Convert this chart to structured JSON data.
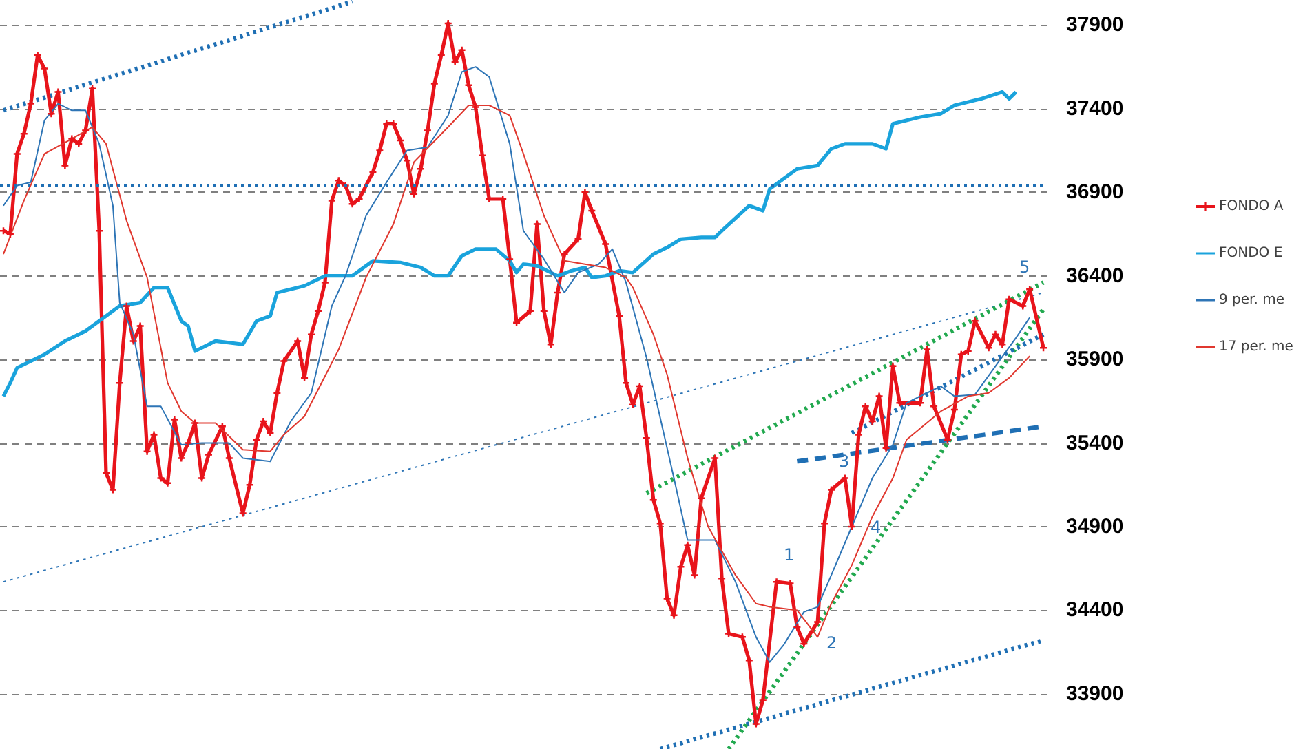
{
  "chart_data": {
    "type": "line",
    "categories": [
      null,
      null,
      null,
      null,
      null,
      null,
      null,
      null,
      null,
      null,
      null,
      null,
      null,
      null,
      null,
      null,
      null,
      null,
      null,
      null,
      null,
      null,
      null,
      null,
      null,
      null,
      null,
      null,
      null,
      null,
      null,
      null,
      null,
      null,
      null,
      null,
      null,
      null,
      null,
      null,
      null,
      null,
      null,
      null,
      null,
      null,
      null,
      null,
      null,
      null,
      null,
      null,
      null,
      null,
      null,
      null,
      null,
      null,
      null,
      null,
      null,
      null,
      null,
      null,
      null,
      null,
      null,
      null,
      null,
      null,
      null,
      null,
      null,
      null,
      null,
      null,
      null,
      null,
      null,
      null,
      null,
      null,
      null,
      null,
      null,
      null,
      null,
      null,
      null,
      null,
      null,
      null,
      null,
      null,
      null,
      null,
      null,
      null,
      null,
      null,
      null,
      null,
      null,
      null,
      null,
      null,
      null,
      null,
      null,
      null,
      null,
      null,
      null,
      null,
      null,
      null,
      null,
      null,
      null,
      null,
      null,
      null,
      null,
      null,
      null,
      null,
      null,
      null,
      null,
      null,
      null,
      null,
      null,
      null,
      null,
      null,
      null,
      null,
      null,
      null,
      null,
      null,
      null,
      null,
      null,
      null,
      null,
      null,
      null,
      null,
      null,
      null,
      null
    ],
    "ylim": [
      33570,
      38050
    ],
    "yticks": [
      33900,
      34400,
      34900,
      35400,
      35900,
      36400,
      36900,
      37400,
      37900
    ],
    "tick_labels": "y",
    "grid": "y",
    "legend": "right",
    "series": [
      {
        "name": "FONDO A",
        "color": "#e8141b",
        "marker": "cross",
        "values": [
          36670,
          36650,
          37130,
          37250,
          37430,
          37720,
          37640,
          37370,
          37500,
          37060,
          37220,
          37190,
          37270,
          37520,
          36670,
          35220,
          35120,
          35760,
          36220,
          36010,
          36100,
          35350,
          35450,
          35190,
          35160,
          35540,
          35310,
          35400,
          35520,
          35190,
          35330,
          null,
          35500,
          35310,
          null,
          34980,
          35150,
          35420,
          35530,
          35460,
          35700,
          35890,
          null,
          36010,
          35790,
          36050,
          36190,
          36360,
          36850,
          36970,
          36940,
          36830,
          36860,
          null,
          37020,
          37150,
          37310,
          37310,
          37210,
          37090,
          36890,
          37040,
          37270,
          37550,
          37720,
          37910,
          37680,
          37750,
          37540,
          37410,
          37120,
          36860,
          null,
          36860,
          36500,
          36120,
          null,
          36190,
          36710,
          36190,
          35990,
          36300,
          36530,
          null,
          36620,
          36900,
          36790,
          null,
          36590,
          null,
          36160,
          35760,
          35630,
          35740,
          35430,
          35060,
          34920,
          34470,
          34370,
          34660,
          34790,
          34610,
          35070,
          null,
          35310,
          34590,
          34260,
          null,
          34240,
          34100,
          33720,
          33860,
          null,
          34570,
          null,
          34560,
          34300,
          34200,
          null,
          34330,
          34920,
          35120,
          null,
          35190,
          34900,
          35450,
          35620,
          35530,
          35680,
          35370,
          35860,
          35640,
          null,
          null,
          35640,
          35960,
          35620,
          null,
          35420,
          35600,
          35930,
          35950,
          36130,
          null,
          35970,
          36050,
          35990,
          36260,
          null,
          36220,
          36320,
          null,
          35970
        ]
      },
      {
        "name": "FONDO E",
        "color": "#1aa3dc",
        "values": [
          35680,
          35760,
          35850,
          null,
          null,
          null,
          35930,
          null,
          null,
          36010,
          null,
          null,
          36070,
          null,
          null,
          null,
          null,
          36220,
          null,
          null,
          36240,
          null,
          36330,
          null,
          36330,
          null,
          36130,
          36100,
          35950,
          null,
          null,
          36010,
          null,
          null,
          null,
          35990,
          null,
          36130,
          null,
          36160,
          36300,
          null,
          null,
          null,
          36340,
          null,
          null,
          36400,
          null,
          null,
          null,
          36400,
          null,
          null,
          36490,
          null,
          null,
          null,
          36480,
          null,
          null,
          36450,
          null,
          36400,
          null,
          36400,
          null,
          36520,
          null,
          36560,
          null,
          null,
          36560,
          null,
          36490,
          36420,
          36470,
          null,
          36460,
          null,
          null,
          36400,
          null,
          36430,
          null,
          36450,
          36390,
          null,
          36400,
          null,
          36430,
          null,
          36420,
          null,
          null,
          36530,
          null,
          36570,
          null,
          36620,
          null,
          null,
          36630,
          null,
          36630,
          36670,
          null,
          null,
          null,
          36820,
          null,
          36790,
          36920,
          null,
          null,
          null,
          37040,
          null,
          null,
          37060,
          null,
          37160,
          null,
          37190,
          null,
          null,
          null,
          37190,
          null,
          37160,
          37310,
          null,
          null,
          null,
          37350,
          null,
          null,
          37370,
          null,
          37420,
          null,
          null,
          null,
          37460,
          null,
          null,
          37500,
          37460,
          37500,
          null,
          null,
          null,
          null
        ]
      },
      {
        "name": "9 per. me",
        "color": "#2e75b6",
        "values": [
          36820,
          null,
          36940,
          null,
          36960,
          null,
          37330,
          null,
          37430,
          null,
          37390,
          null,
          37390,
          null,
          37190,
          null,
          36820,
          36240,
          null,
          36050,
          null,
          35620,
          null,
          35620,
          null,
          null,
          35390,
          null,
          null,
          35400,
          null,
          null,
          null,
          35400,
          null,
          35310,
          null,
          null,
          null,
          35290,
          null,
          null,
          35530,
          null,
          null,
          35700,
          null,
          null,
          36220,
          null,
          36400,
          null,
          null,
          36760,
          null,
          null,
          36960,
          null,
          null,
          37150,
          null,
          null,
          37170,
          null,
          null,
          37360,
          null,
          37620,
          null,
          37650,
          null,
          37590,
          null,
          null,
          37190,
          null,
          36670,
          null,
          null,
          36500,
          null,
          null,
          36300,
          null,
          36420,
          null,
          null,
          36470,
          null,
          36560,
          null,
          36360,
          null,
          null,
          35910,
          null,
          null,
          null,
          35190,
          null,
          34820,
          null,
          null,
          null,
          34820,
          null,
          null,
          34570,
          null,
          null,
          34240,
          null,
          34090,
          null,
          34190,
          null,
          null,
          34390,
          null,
          34420,
          null,
          34610,
          null,
          null,
          34900,
          null,
          null,
          35190,
          null,
          null,
          35390,
          null,
          35640,
          null,
          null,
          null,
          null,
          35740,
          null,
          35680,
          null,
          null,
          35690,
          null,
          null,
          35860,
          null,
          null,
          36030,
          null,
          36150,
          null,
          null
        ]
      },
      {
        "name": "17 per. me",
        "color": "#e0382f",
        "values": [
          36530,
          null,
          null,
          36850,
          null,
          null,
          37130,
          null,
          null,
          null,
          37220,
          null,
          null,
          37290,
          null,
          37190,
          null,
          null,
          36730,
          null,
          null,
          36390,
          null,
          null,
          35760,
          null,
          35590,
          null,
          35520,
          null,
          null,
          35520,
          null,
          null,
          null,
          35360,
          null,
          null,
          null,
          35350,
          null,
          35450,
          null,
          null,
          35560,
          null,
          null,
          null,
          null,
          35960,
          null,
          null,
          null,
          36390,
          null,
          null,
          null,
          36710,
          null,
          null,
          37080,
          null,
          null,
          null,
          null,
          37290,
          null,
          null,
          37420,
          null,
          null,
          37420,
          null,
          null,
          37360,
          null,
          37130,
          null,
          null,
          36760,
          null,
          null,
          36490,
          null,
          null,
          36470,
          null,
          null,
          36450,
          null,
          null,
          36390,
          36330,
          null,
          null,
          36050,
          null,
          35810,
          null,
          null,
          35310,
          null,
          null,
          34900,
          null,
          null,
          null,
          34610,
          null,
          null,
          34440,
          null,
          34420,
          null,
          null,
          null,
          34400,
          null,
          null,
          34240,
          null,
          34440,
          null,
          null,
          34670,
          null,
          null,
          34960,
          null,
          null,
          35190,
          null,
          35420,
          null,
          null,
          null,
          null,
          35590,
          null,
          null,
          null,
          35680,
          null,
          null,
          35700,
          null,
          null,
          35790,
          null,
          null,
          35920,
          null,
          null
        ]
      },
      {
        "type": "line",
        "color": "#1f6fb4",
        "line_style": "dotted",
        "values": [
          37390,
          null,
          null,
          null,
          null,
          null,
          null,
          null,
          null,
          null,
          null,
          null,
          null,
          null,
          null,
          null,
          null,
          null,
          null,
          null,
          null,
          null,
          null,
          null,
          null,
          null,
          null,
          null,
          null,
          null,
          null,
          null,
          null,
          null,
          null,
          null,
          null,
          null,
          null,
          null,
          null,
          null,
          null,
          null,
          null,
          null,
          null,
          null,
          null,
          null,
          null,
          38040,
          null,
          null,
          null,
          null,
          null,
          null,
          null,
          null,
          null,
          null,
          null,
          null,
          null,
          null,
          null,
          null,
          null,
          null,
          null,
          null,
          null,
          null,
          null,
          null,
          null,
          null,
          null,
          null,
          null,
          null,
          null,
          null,
          null,
          null,
          null,
          null,
          null,
          null,
          null,
          null,
          null,
          null,
          null,
          null,
          null,
          null,
          null,
          null,
          null,
          null,
          null,
          null,
          null,
          null,
          null,
          null,
          null,
          null,
          null,
          null,
          null,
          null,
          null,
          null,
          null,
          null,
          null,
          null,
          null,
          null,
          null,
          null,
          null,
          null,
          null,
          null,
          null,
          null,
          null,
          null,
          null,
          null,
          null,
          null,
          null,
          null,
          null,
          null,
          null,
          null,
          null,
          null,
          null,
          null,
          null,
          null,
          null,
          null,
          null,
          null,
          null
        ]
      },
      {
        "type": "line",
        "color": "#2e75b6",
        "line_style": "dotted",
        "values": [
          34570,
          null,
          null,
          null,
          null,
          null,
          null,
          null,
          null,
          null,
          null,
          null,
          null,
          null,
          null,
          null,
          null,
          null,
          null,
          null,
          null,
          null,
          null,
          null,
          null,
          null,
          null,
          null,
          null,
          null,
          null,
          null,
          null,
          null,
          null,
          null,
          null,
          null,
          null,
          null,
          null,
          null,
          null,
          null,
          null,
          null,
          null,
          null,
          null,
          null,
          null,
          null,
          null,
          null,
          null,
          null,
          null,
          null,
          null,
          null,
          null,
          null,
          null,
          null,
          null,
          null,
          null,
          null,
          null,
          null,
          null,
          null,
          null,
          null,
          null,
          null,
          null,
          null,
          null,
          null,
          null,
          null,
          null,
          null,
          null,
          null,
          null,
          null,
          null,
          null,
          null,
          null,
          null,
          null,
          null,
          null,
          null,
          null,
          null,
          null,
          null,
          null,
          null,
          null,
          null,
          null,
          null,
          null,
          null,
          null,
          null,
          null,
          null,
          null,
          null,
          null,
          null,
          null,
          null,
          null,
          null,
          null,
          null,
          null,
          null,
          null,
          null,
          null,
          null,
          null,
          null,
          null,
          null,
          null,
          null,
          null,
          null,
          null,
          null,
          null,
          null,
          null,
          null,
          null,
          null,
          null,
          null,
          null,
          null,
          null,
          null,
          null,
          36300
        ]
      },
      {
        "type": "line",
        "color": "#1f6fb4",
        "line_style": "dotted",
        "values": [
          null,
          null,
          null,
          null,
          null,
          null,
          null,
          null,
          null,
          null,
          null,
          null,
          null,
          null,
          null,
          null,
          null,
          null,
          null,
          null,
          null,
          null,
          null,
          null,
          null,
          null,
          null,
          null,
          null,
          null,
          null,
          null,
          null,
          null,
          null,
          null,
          null,
          null,
          null,
          null,
          null,
          null,
          null,
          null,
          null,
          null,
          null,
          null,
          null,
          null,
          null,
          null,
          null,
          null,
          null,
          null,
          null,
          null,
          null,
          null,
          null,
          null,
          null,
          null,
          null,
          null,
          null,
          null,
          null,
          null,
          null,
          null,
          null,
          null,
          null,
          null,
          null,
          null,
          null,
          null,
          null,
          null,
          null,
          null,
          null,
          null,
          null,
          null,
          null,
          null,
          null,
          null,
          null,
          null,
          null,
          null,
          33570,
          null,
          null,
          null,
          null,
          null,
          null,
          null,
          null,
          null,
          null,
          null,
          null,
          null,
          null,
          null,
          null,
          null,
          null,
          null,
          null,
          null,
          null,
          null,
          null,
          null,
          null,
          null,
          null,
          null,
          null,
          null,
          null,
          null,
          null,
          null,
          null,
          null,
          null,
          null,
          null,
          null,
          null,
          null,
          null,
          null,
          null,
          null,
          null,
          null,
          null,
          null,
          null,
          null,
          null,
          null,
          34220
        ]
      },
      {
        "type": "line",
        "color": "#22a94f",
        "line_style": "dotted",
        "values": [
          null,
          null,
          null,
          null,
          null,
          null,
          null,
          null,
          null,
          null,
          null,
          null,
          null,
          null,
          null,
          null,
          null,
          null,
          null,
          null,
          null,
          null,
          null,
          null,
          null,
          null,
          null,
          null,
          null,
          null,
          null,
          null,
          null,
          null,
          null,
          null,
          null,
          null,
          null,
          null,
          null,
          null,
          null,
          null,
          null,
          null,
          null,
          null,
          null,
          null,
          null,
          null,
          null,
          null,
          null,
          null,
          null,
          null,
          null,
          null,
          null,
          null,
          null,
          null,
          null,
          null,
          null,
          null,
          null,
          null,
          null,
          null,
          null,
          null,
          null,
          null,
          null,
          null,
          null,
          null,
          null,
          null,
          null,
          null,
          null,
          null,
          null,
          null,
          null,
          null,
          null,
          null,
          null,
          null,
          35100,
          null,
          null,
          null,
          null,
          null,
          null,
          null,
          null,
          null,
          null,
          null,
          null,
          null,
          null,
          null,
          null,
          null,
          null,
          null,
          null,
          null,
          null,
          null,
          null,
          null,
          null,
          null,
          null,
          null,
          null,
          null,
          null,
          null,
          null,
          null,
          null,
          null,
          null,
          null,
          null,
          null,
          null,
          null,
          null,
          null,
          null,
          null,
          null,
          null,
          null,
          null,
          null,
          null,
          null,
          null,
          null,
          null,
          36360
        ]
      },
      {
        "type": "line",
        "color": "#22a94f",
        "line_style": "dotted",
        "values": [
          null,
          null,
          null,
          null,
          null,
          null,
          null,
          null,
          null,
          null,
          null,
          null,
          null,
          null,
          null,
          null,
          null,
          null,
          null,
          null,
          null,
          null,
          null,
          null,
          null,
          null,
          null,
          null,
          null,
          null,
          null,
          null,
          null,
          null,
          null,
          null,
          null,
          null,
          null,
          null,
          null,
          null,
          null,
          null,
          null,
          null,
          null,
          null,
          null,
          null,
          null,
          null,
          null,
          null,
          null,
          null,
          null,
          null,
          null,
          null,
          null,
          null,
          null,
          null,
          null,
          null,
          null,
          null,
          null,
          null,
          null,
          null,
          null,
          null,
          null,
          null,
          null,
          null,
          null,
          null,
          null,
          null,
          null,
          null,
          null,
          null,
          null,
          null,
          null,
          null,
          null,
          null,
          null,
          null,
          null,
          null,
          null,
          null,
          null,
          null,
          null,
          null,
          null,
          null,
          null,
          null,
          33570,
          null,
          null,
          null,
          null,
          null,
          null,
          null,
          null,
          null,
          null,
          null,
          null,
          null,
          null,
          null,
          null,
          null,
          null,
          null,
          null,
          null,
          null,
          null,
          null,
          null,
          null,
          null,
          null,
          null,
          null,
          null,
          null,
          null,
          null,
          null,
          null,
          null,
          null,
          null,
          null,
          null,
          null,
          null,
          null,
          null,
          36200
        ]
      },
      {
        "type": "line",
        "color": "#1f6fb4",
        "line_style": "dashed",
        "values": [
          null,
          null,
          null,
          null,
          null,
          null,
          null,
          null,
          null,
          null,
          null,
          null,
          null,
          null,
          null,
          null,
          null,
          null,
          null,
          null,
          null,
          null,
          null,
          null,
          null,
          null,
          null,
          null,
          null,
          null,
          null,
          null,
          null,
          null,
          null,
          null,
          null,
          null,
          null,
          null,
          null,
          null,
          null,
          null,
          null,
          null,
          null,
          null,
          null,
          null,
          null,
          null,
          null,
          null,
          null,
          null,
          null,
          null,
          null,
          null,
          null,
          null,
          null,
          null,
          null,
          null,
          null,
          null,
          null,
          null,
          null,
          null,
          null,
          null,
          null,
          null,
          null,
          null,
          null,
          null,
          null,
          null,
          null,
          null,
          null,
          null,
          null,
          null,
          null,
          null,
          null,
          null,
          null,
          null,
          null,
          null,
          null,
          null,
          null,
          null,
          null,
          null,
          null,
          null,
          null,
          null,
          null,
          null,
          null,
          null,
          null,
          null,
          null,
          null,
          null,
          null,
          35290,
          null,
          null,
          null,
          null,
          null,
          null,
          null,
          null,
          null,
          null,
          null,
          null,
          null,
          null,
          null,
          null,
          null,
          null,
          null,
          null,
          null,
          null,
          null,
          null,
          null,
          null,
          null,
          null,
          null,
          null,
          null,
          null,
          null,
          null,
          null,
          35500
        ]
      },
      {
        "type": "line",
        "color": "#1f6fb4",
        "line_style": "dotted",
        "values": [
          null,
          null,
          null,
          null,
          null,
          null,
          null,
          null,
          null,
          null,
          null,
          null,
          null,
          null,
          null,
          null,
          null,
          null,
          null,
          null,
          null,
          null,
          null,
          null,
          null,
          null,
          null,
          null,
          null,
          null,
          null,
          null,
          null,
          null,
          null,
          null,
          null,
          null,
          null,
          null,
          null,
          null,
          null,
          null,
          null,
          null,
          null,
          null,
          null,
          null,
          null,
          null,
          null,
          null,
          null,
          null,
          null,
          null,
          null,
          null,
          null,
          null,
          null,
          null,
          null,
          null,
          null,
          null,
          null,
          null,
          null,
          null,
          null,
          null,
          null,
          null,
          null,
          null,
          null,
          null,
          null,
          null,
          null,
          null,
          null,
          null,
          null,
          null,
          null,
          null,
          null,
          null,
          null,
          null,
          null,
          null,
          null,
          null,
          null,
          null,
          null,
          null,
          null,
          null,
          null,
          null,
          null,
          null,
          null,
          null,
          null,
          null,
          null,
          null,
          null,
          null,
          null,
          null,
          null,
          null,
          null,
          null,
          null,
          null,
          35460,
          null,
          null,
          null,
          null,
          null,
          null,
          null,
          null,
          null,
          null,
          null,
          null,
          null,
          null,
          null,
          null,
          null,
          null,
          null,
          null,
          null,
          null,
          null,
          null,
          null,
          null,
          null,
          36050
        ]
      }
    ],
    "ref_lines": [
      {
        "axis": "y",
        "value": 36940,
        "color": "#1f6fb4",
        "line_style": "dotted"
      }
    ],
    "annotations": [
      "1",
      "2",
      "3",
      "4",
      "5"
    ]
  }
}
